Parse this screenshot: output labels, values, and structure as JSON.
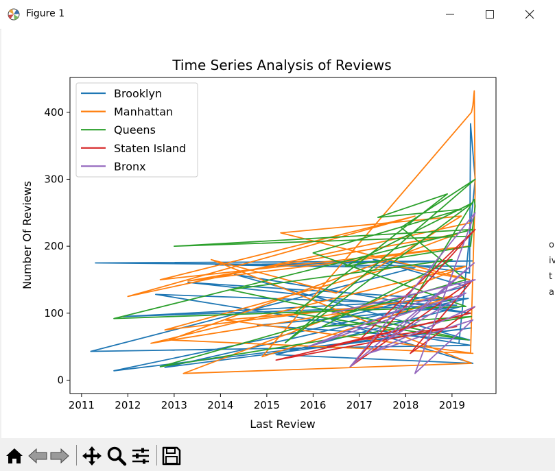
{
  "window": {
    "title": "Figure 1",
    "icons": [
      "matplotlib-app-icon",
      "minimize-icon",
      "maximize-icon",
      "close-icon"
    ]
  },
  "right_edge_glimpse": [
    "o",
    "iv",
    "t",
    "a"
  ],
  "toolbar": {
    "icons": [
      "home-icon",
      "back-arrow-icon",
      "forward-arrow-icon",
      "pan-move-icon",
      "zoom-magnifier-icon",
      "configure-subplots-icon",
      "save-floppy-icon"
    ]
  },
  "chart_data": {
    "type": "line",
    "title": "Time Series Analysis of Reviews",
    "xlabel": "Last Review",
    "ylabel": "Number Of Reviews",
    "xlim": [
      2010.75,
      2019.95
    ],
    "ylim": [
      -20,
      452
    ],
    "x_ticks": [
      "2011",
      "2012",
      "2013",
      "2014",
      "2015",
      "2016",
      "2017",
      "2018",
      "2019"
    ],
    "y_ticks": [
      "0",
      "100",
      "200",
      "300",
      "400"
    ],
    "grid": false,
    "legend_position": "upper left",
    "series": [
      {
        "name": "Brooklyn",
        "color": "#1f77b4",
        "x": [
          2019.3,
          2011.3,
          2019.45,
          2013.9,
          2018.2,
          2011.2,
          2019.4,
          2012.6,
          2019.1,
          2011.9,
          2019.35,
          2012.8,
          2019.42,
          2011.7,
          2019.0,
          2013.3,
          2019.4,
          2014.3,
          2019.38,
          2014.8,
          2019.2,
          2015.2,
          2019.45,
          2016.4,
          2019.3,
          2017.3,
          2019.38,
          2019.4,
          2019.5,
          2019.15
        ],
        "y": [
          170,
          175,
          178,
          172,
          168,
          43,
          52,
          128,
          112,
          95,
          122,
          19,
          78,
          14,
          120,
          146,
          100,
          158,
          60,
          82,
          110,
          38,
          25,
          90,
          140,
          180,
          160,
          383,
          300,
          55
        ]
      },
      {
        "name": "Manhattan",
        "color": "#ff7f0e",
        "x": [
          2019.4,
          2012.0,
          2018.2,
          2012.7,
          2019.35,
          2013.3,
          2019.1,
          2012.9,
          2019.45,
          2014.1,
          2017.5,
          2012.5,
          2019.3,
          2013.2,
          2019.42,
          2013.8,
          2016.5,
          2019.2,
          2015.3,
          2019.38,
          2017.8,
          2012.8,
          2019.0,
          2014.9,
          2019.42,
          2019.45,
          2019.48,
          2019.5,
          2019.4
        ],
        "y": [
          235,
          125,
          245,
          150,
          200,
          148,
          218,
          60,
          40,
          90,
          110,
          55,
          170,
          10,
          25,
          180,
          130,
          245,
          220,
          150,
          170,
          75,
          125,
          35,
          400,
          410,
          432,
          280,
          40
        ]
      },
      {
        "name": "Queens",
        "color": "#2ca02c",
        "x": [
          2019.4,
          2013.0,
          2019.45,
          2011.7,
          2019.3,
          2016.0,
          2019.2,
          2017.4,
          2018.9,
          2015.6,
          2019.35,
          2014.2,
          2019.0,
          2016.2,
          2019.42,
          2012.7,
          2019.3,
          2017.9,
          2019.5,
          2015.4,
          2019.45,
          2016.7,
          2019.4,
          2019.5,
          2019.48,
          2018.0
        ],
        "y": [
          215,
          200,
          225,
          92,
          110,
          190,
          255,
          243,
          278,
          100,
          60,
          135,
          180,
          80,
          95,
          20,
          150,
          228,
          300,
          56,
          265,
          170,
          200,
          260,
          270,
          100
        ]
      },
      {
        "name": "Staten Island",
        "color": "#d62728",
        "x": [
          2016.3,
          2019.4,
          2015.2,
          2019.1,
          2017.0,
          2019.5,
          2016.8,
          2019.45,
          2018.1,
          2019.5
        ],
        "y": [
          50,
          100,
          30,
          80,
          60,
          225,
          20,
          150,
          40,
          110
        ]
      },
      {
        "name": "Bronx",
        "color": "#9467bd",
        "x": [
          2016.4,
          2019.5,
          2015.9,
          2019.3,
          2017.6,
          2019.48,
          2016.8,
          2019.5,
          2018.2,
          2019.45,
          2017.2,
          2019.5
        ],
        "y": [
          100,
          150,
          50,
          130,
          60,
          175,
          20,
          250,
          10,
          90,
          40,
          110
        ]
      }
    ]
  }
}
